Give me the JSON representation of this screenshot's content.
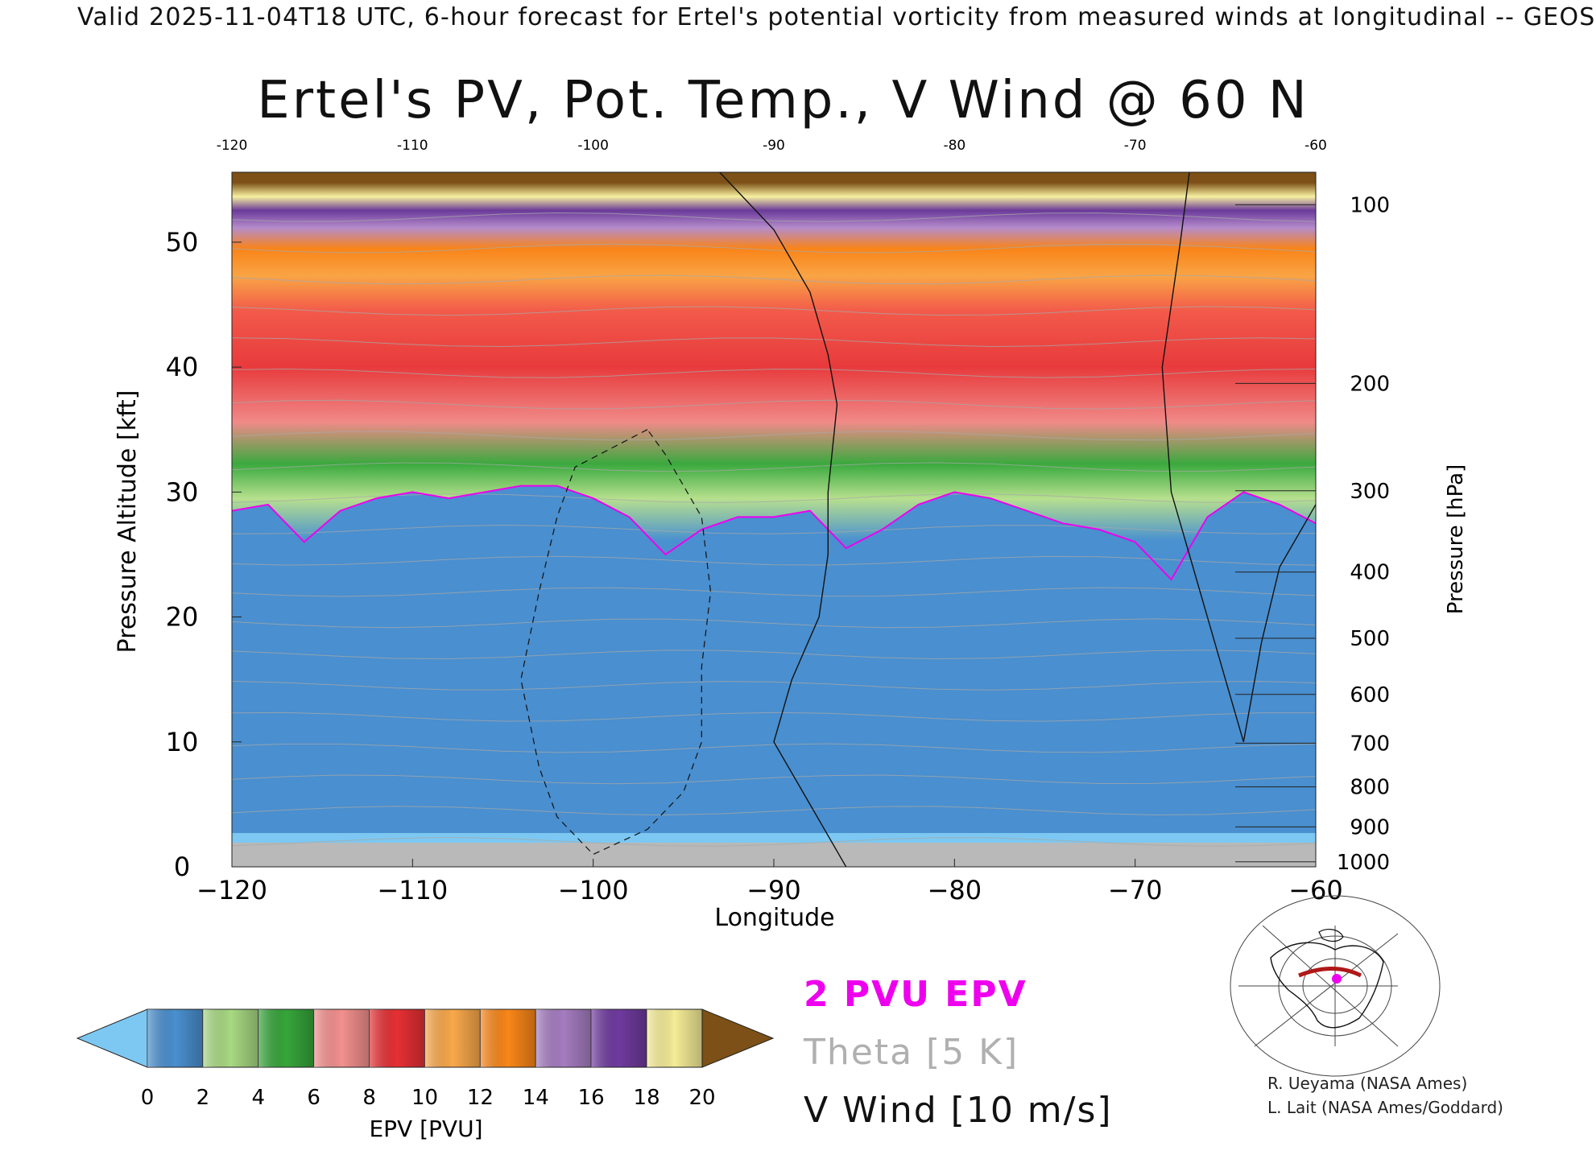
{
  "header": {
    "banner": "Valid 2025-11-04T18 UTC, 6-hour forecast for Ertel's potential vorticity from measured winds at longitudinal -- GEOS",
    "title": "Ertel's PV, Pot. Temp., V Wind @ 60 N"
  },
  "chart_data": {
    "type": "heatmap",
    "title": "Ertel's PV, Pot. Temp., V Wind @ 60 N",
    "xlabel": "Longitude",
    "ylabel": "Pressure Altitude [kft]",
    "y2label": "Pressure [hPa]",
    "xlim": [
      -120,
      -60
    ],
    "ylim": [
      0,
      55.6
    ],
    "x_ticks": [
      -120,
      -110,
      -100,
      -90,
      -80,
      -70,
      -60
    ],
    "y_ticks": [
      0,
      10,
      20,
      30,
      40,
      50
    ],
    "pressure_ticks": [
      {
        "hpa": "100",
        "kft": 53.0
      },
      {
        "hpa": "200",
        "kft": 38.7
      },
      {
        "hpa": "300",
        "kft": 30.1
      },
      {
        "hpa": "400",
        "kft": 23.6
      },
      {
        "hpa": "500",
        "kft": 18.3
      },
      {
        "hpa": "600",
        "kft": 13.8
      },
      {
        "hpa": "700",
        "kft": 9.9
      },
      {
        "hpa": "800",
        "kft": 6.4
      },
      {
        "hpa": "900",
        "kft": 3.2
      },
      {
        "hpa": "1000",
        "kft": 0.4
      }
    ],
    "pv_2pvu_altitude_kft": {
      "x": [
        -120,
        -118,
        -116,
        -114,
        -112,
        -110,
        -108,
        -106,
        -104,
        -102,
        -100,
        -98,
        -96,
        -94,
        -92,
        -90,
        -88,
        -86,
        -84,
        -82,
        -80,
        -78,
        -76,
        -74,
        -72,
        -70,
        -68,
        -66,
        -64,
        -62,
        -60
      ],
      "y": [
        28.5,
        29.0,
        26.0,
        28.5,
        29.5,
        30.0,
        29.5,
        30.0,
        30.5,
        30.5,
        29.5,
        28.0,
        25.0,
        27.0,
        28.0,
        28.0,
        28.5,
        25.5,
        27.0,
        29.0,
        30.0,
        29.5,
        28.5,
        27.5,
        27.0,
        26.0,
        23.0,
        28.0,
        30.0,
        29.0,
        27.5
      ]
    },
    "legend": {
      "label": "EPV [PVU]",
      "ticks": [
        "0",
        "2",
        "4",
        "6",
        "8",
        "10",
        "12",
        "14",
        "16",
        "18",
        "20"
      ],
      "bins": [
        {
          "from": 0,
          "to": 2,
          "color": "#4a8fcf"
        },
        {
          "from": 2,
          "to": 4,
          "color": "#a8d982"
        },
        {
          "from": 4,
          "to": 6,
          "color": "#36a53a"
        },
        {
          "from": 6,
          "to": 8,
          "color": "#f3908e"
        },
        {
          "from": 8,
          "to": 10,
          "color": "#e53034"
        },
        {
          "from": 10,
          "to": 12,
          "color": "#f9a84a"
        },
        {
          "from": 12,
          "to": 14,
          "color": "#f98618"
        },
        {
          "from": 14,
          "to": 16,
          "color": "#a57cc0"
        },
        {
          "from": 16,
          "to": 18,
          "color": "#6f3a9e"
        },
        {
          "from": 18,
          "to": 20,
          "color": "#f5ec96"
        }
      ],
      "below_color": "#7cc8f2",
      "above_color": "#7c5016"
    },
    "overlays": [
      "2 PVU EPV",
      "Theta [5 K]",
      "V Wind [10 m/s]"
    ],
    "overlay_colors": [
      "#ee00ee",
      "#a8a8a8",
      "#111111"
    ]
  },
  "inset_map": {
    "section_color": "#b01818",
    "marker_color": "#ee00ee"
  },
  "credits": [
    "R. Ueyama (NASA Ames)",
    "L. Lait (NASA Ames/Goddard)"
  ]
}
